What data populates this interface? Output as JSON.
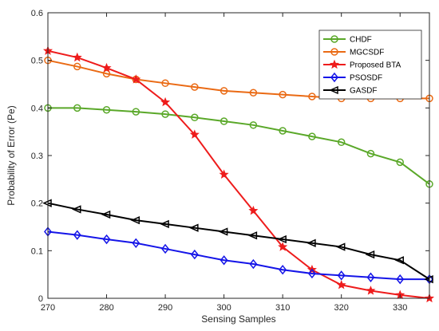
{
  "chart_data": {
    "type": "line",
    "title": "",
    "xlabel": "Sensing Samples",
    "ylabel": "Probability of Error (Pe)",
    "xlim": [
      270,
      335
    ],
    "ylim": [
      0,
      0.6
    ],
    "x_ticks": [
      270,
      280,
      290,
      300,
      310,
      320,
      330
    ],
    "y_ticks": [
      0,
      0.1,
      0.2,
      0.3,
      0.4,
      0.5,
      0.6
    ],
    "x_tick_labels": [
      "270",
      "280",
      "290",
      "300",
      "310",
      "320",
      "330"
    ],
    "y_tick_labels": [
      "0",
      "0.1",
      "0.2",
      "0.3",
      "0.4",
      "0.5",
      "0.6"
    ],
    "grid": false,
    "legend_position": "top-right",
    "x": [
      270,
      275,
      280,
      285,
      290,
      295,
      300,
      305,
      310,
      315,
      320,
      325,
      330,
      335
    ],
    "series": [
      {
        "name": "CHDF",
        "color": "#5aa829",
        "marker": "circle",
        "values": [
          0.4,
          0.4,
          0.396,
          0.392,
          0.387,
          0.38,
          0.372,
          0.364,
          0.352,
          0.34,
          0.328,
          0.304,
          0.286,
          0.24
        ]
      },
      {
        "name": "MGCSDF",
        "color": "#ea6a14",
        "marker": "circle",
        "values": [
          0.5,
          0.487,
          0.472,
          0.46,
          0.452,
          0.444,
          0.436,
          0.432,
          0.428,
          0.424,
          0.42,
          0.42,
          0.42,
          0.42
        ]
      },
      {
        "name": "Proposed BTA",
        "color": "#ee1c1c",
        "marker": "star",
        "values": [
          0.52,
          0.506,
          0.484,
          0.46,
          0.412,
          0.344,
          0.26,
          0.184,
          0.108,
          0.06,
          0.028,
          0.016,
          0.007,
          0.0
        ]
      },
      {
        "name": "PSOSDF",
        "color": "#1515e8",
        "marker": "diamond",
        "values": [
          0.14,
          0.133,
          0.124,
          0.116,
          0.104,
          0.092,
          0.08,
          0.072,
          0.06,
          0.052,
          0.048,
          0.044,
          0.04,
          0.04
        ]
      },
      {
        "name": "GASDF",
        "color": "#000000",
        "marker": "triangle-left",
        "values": [
          0.2,
          0.187,
          0.176,
          0.164,
          0.156,
          0.148,
          0.14,
          0.132,
          0.124,
          0.116,
          0.108,
          0.092,
          0.08,
          0.04
        ]
      }
    ]
  }
}
